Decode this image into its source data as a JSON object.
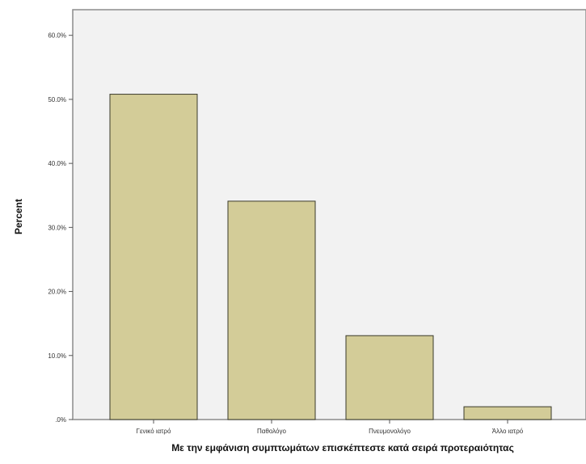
{
  "chart_data": {
    "type": "bar",
    "categories": [
      "Γενικό ιατρό",
      "Παθολόγο",
      "Πνευμονολόγο",
      "Άλλο ιατρό"
    ],
    "values": [
      50.8,
      34.1,
      13.1,
      2.0
    ],
    "xlabel": "Με την εμφάνιση συμπτωμάτων επισκέπτεστε κατά σειρά προτεραιότητας",
    "ylabel": "Percent",
    "ylim": [
      0,
      64
    ],
    "yticks": [
      0,
      10,
      20,
      30,
      40,
      50,
      60
    ],
    "ytick_labels": [
      ".0%",
      "10.0%",
      "20.0%",
      "30.0%",
      "40.0%",
      "50.0%",
      "60.0%"
    ],
    "grid": false,
    "colors": {
      "bar_fill": "#d3cc98",
      "bar_stroke": "#3a3a2a",
      "plot_background": "#f2f2f2",
      "frame": "#8c8c8c"
    }
  }
}
